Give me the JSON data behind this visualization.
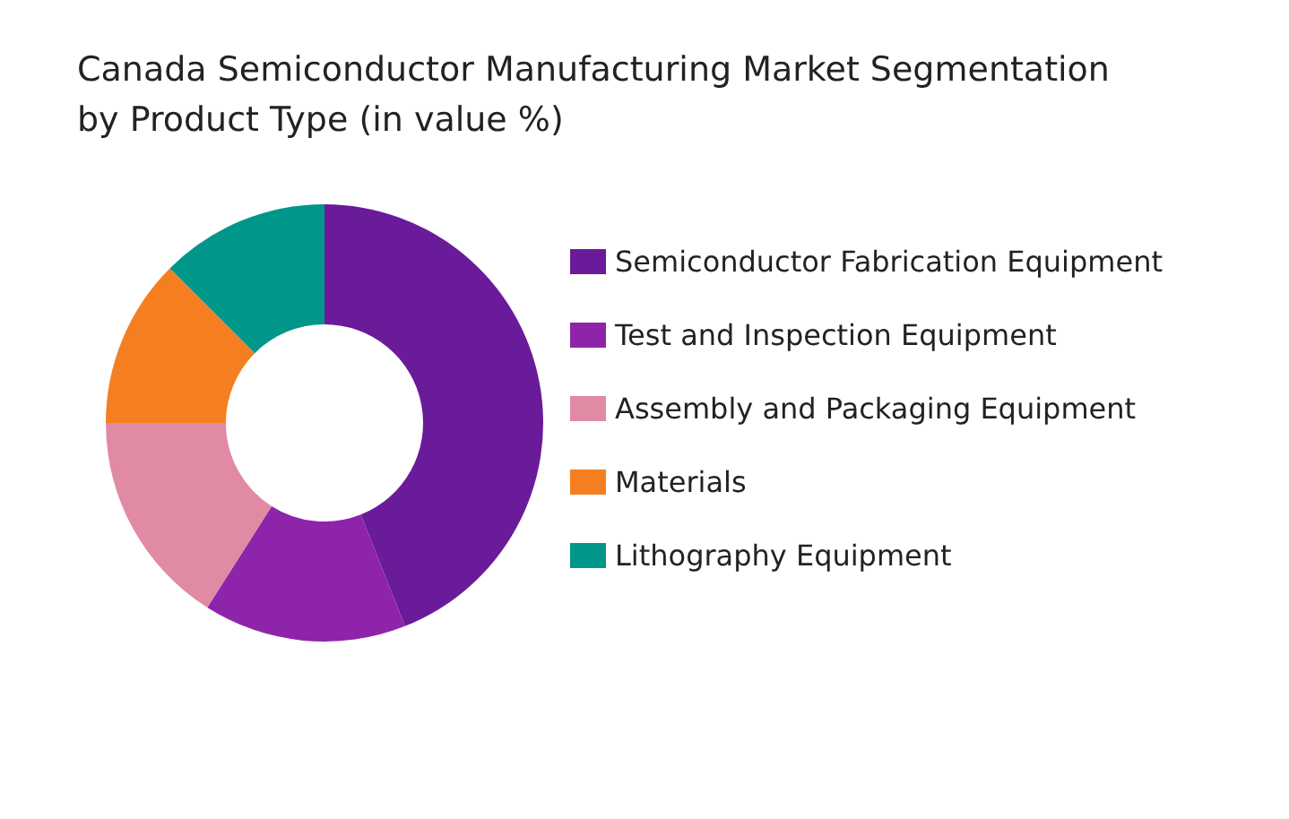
{
  "chart_data": {
    "type": "donut",
    "title": "Canada Semiconductor Manufacturing Market Segmentation\nby Product Type (in value %)",
    "categories": [
      "Semiconductor Fabrication Equipment",
      "Test and Inspection Equipment",
      "Assembly and Packaging Equipment",
      "Materials",
      "Lithography Equipment"
    ],
    "values": [
      44,
      15,
      16,
      12.5,
      12.5
    ],
    "colors": [
      "#6a1b9a",
      "#8e24aa",
      "#e08aa4",
      "#f57f20",
      "#00968a"
    ],
    "legend": "right"
  }
}
